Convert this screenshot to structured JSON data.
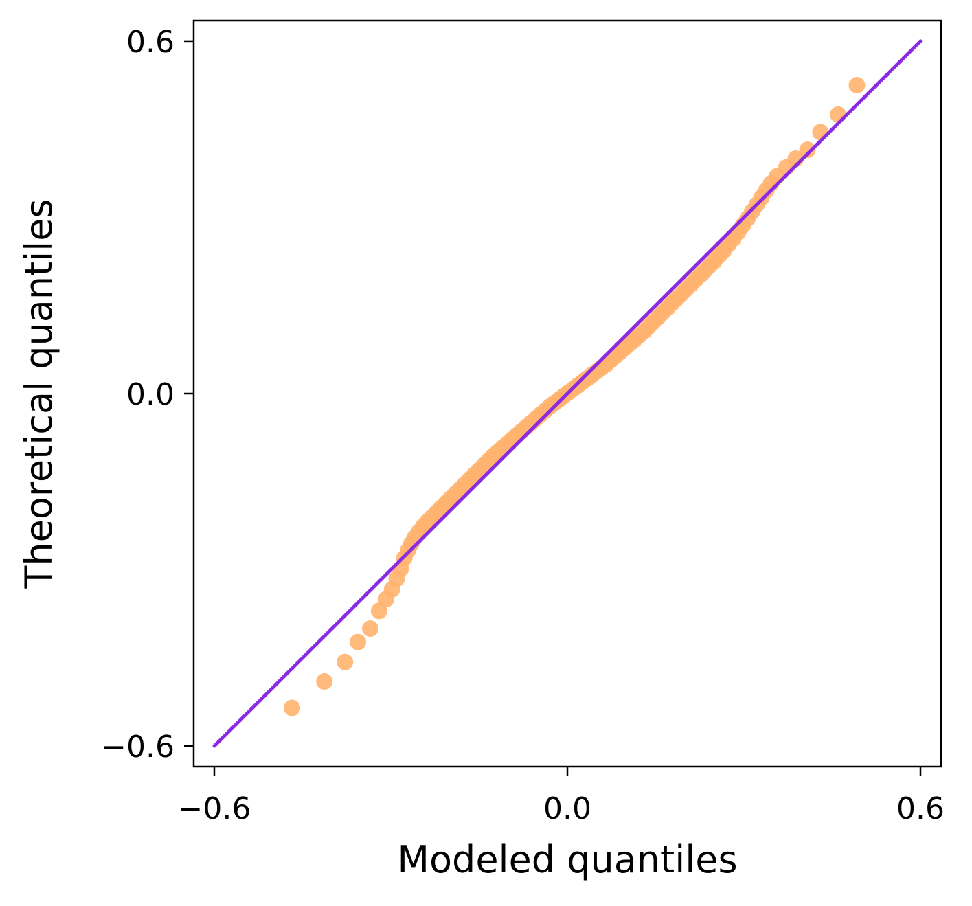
{
  "chart_data": {
    "type": "scatter",
    "title": "",
    "xlabel": "Modeled quantiles",
    "ylabel": "Theoretical quantiles",
    "xlim": [
      -0.635,
      0.635
    ],
    "ylim": [
      -0.635,
      0.635
    ],
    "xticks": [
      -0.6,
      0.0,
      0.6
    ],
    "yticks": [
      -0.6,
      0.0,
      0.6
    ],
    "xtick_labels": [
      "−0.6",
      "0.0",
      "0.6"
    ],
    "ytick_labels": [
      "−0.6",
      "0.0",
      "0.6"
    ],
    "grid": false,
    "legend": "none",
    "colors": {
      "points": "#ffb26e",
      "reference_line": "#8a2be2",
      "axes": "#000000"
    },
    "reference_line": {
      "x": [
        -0.6,
        0.6
      ],
      "y": [
        -0.6,
        0.6
      ]
    },
    "series": [
      {
        "x": [
          -0.468,
          -0.413,
          -0.378,
          -0.356,
          -0.335,
          -0.32,
          -0.308,
          -0.298,
          -0.29,
          -0.283,
          -0.277,
          -0.271,
          -0.265,
          -0.259,
          -0.252,
          -0.245,
          -0.238,
          -0.23,
          -0.222,
          -0.214,
          -0.206,
          -0.198,
          -0.19,
          -0.182,
          -0.174,
          -0.166,
          -0.158,
          -0.15,
          -0.142,
          -0.134,
          -0.126,
          -0.118,
          -0.11,
          -0.102,
          -0.094,
          -0.086,
          -0.078,
          -0.07,
          -0.062,
          -0.054,
          -0.046,
          -0.038,
          -0.03,
          -0.022,
          -0.014,
          -0.006,
          0.002,
          0.01,
          0.018,
          0.026,
          0.034,
          0.042,
          0.05,
          0.058,
          0.066,
          0.074,
          0.082,
          0.09,
          0.098,
          0.106,
          0.114,
          0.122,
          0.13,
          0.138,
          0.146,
          0.154,
          0.162,
          0.17,
          0.178,
          0.186,
          0.194,
          0.202,
          0.21,
          0.218,
          0.226,
          0.234,
          0.242,
          0.25,
          0.258,
          0.266,
          0.274,
          0.282,
          0.29,
          0.298,
          0.306,
          0.314,
          0.322,
          0.33,
          0.338,
          0.346,
          0.356,
          0.372,
          0.388,
          0.408,
          0.43,
          0.46,
          0.492
        ],
        "y": [
          -0.535,
          -0.49,
          -0.457,
          -0.423,
          -0.4,
          -0.37,
          -0.35,
          -0.333,
          -0.315,
          -0.298,
          -0.28,
          -0.267,
          -0.255,
          -0.245,
          -0.235,
          -0.226,
          -0.218,
          -0.21,
          -0.202,
          -0.194,
          -0.186,
          -0.178,
          -0.17,
          -0.162,
          -0.154,
          -0.146,
          -0.138,
          -0.13,
          -0.122,
          -0.114,
          -0.106,
          -0.099,
          -0.092,
          -0.085,
          -0.078,
          -0.071,
          -0.064,
          -0.057,
          -0.05,
          -0.043,
          -0.036,
          -0.029,
          -0.022,
          -0.016,
          -0.01,
          -0.004,
          0.002,
          0.008,
          0.014,
          0.02,
          0.026,
          0.032,
          0.038,
          0.044,
          0.05,
          0.057,
          0.064,
          0.071,
          0.078,
          0.085,
          0.092,
          0.099,
          0.106,
          0.114,
          0.122,
          0.13,
          0.138,
          0.146,
          0.154,
          0.162,
          0.17,
          0.178,
          0.186,
          0.194,
          0.202,
          0.21,
          0.218,
          0.226,
          0.235,
          0.244,
          0.254,
          0.264,
          0.275,
          0.286,
          0.298,
          0.31,
          0.322,
          0.334,
          0.346,
          0.358,
          0.37,
          0.385,
          0.4,
          0.415,
          0.445,
          0.475,
          0.525
        ]
      }
    ]
  }
}
